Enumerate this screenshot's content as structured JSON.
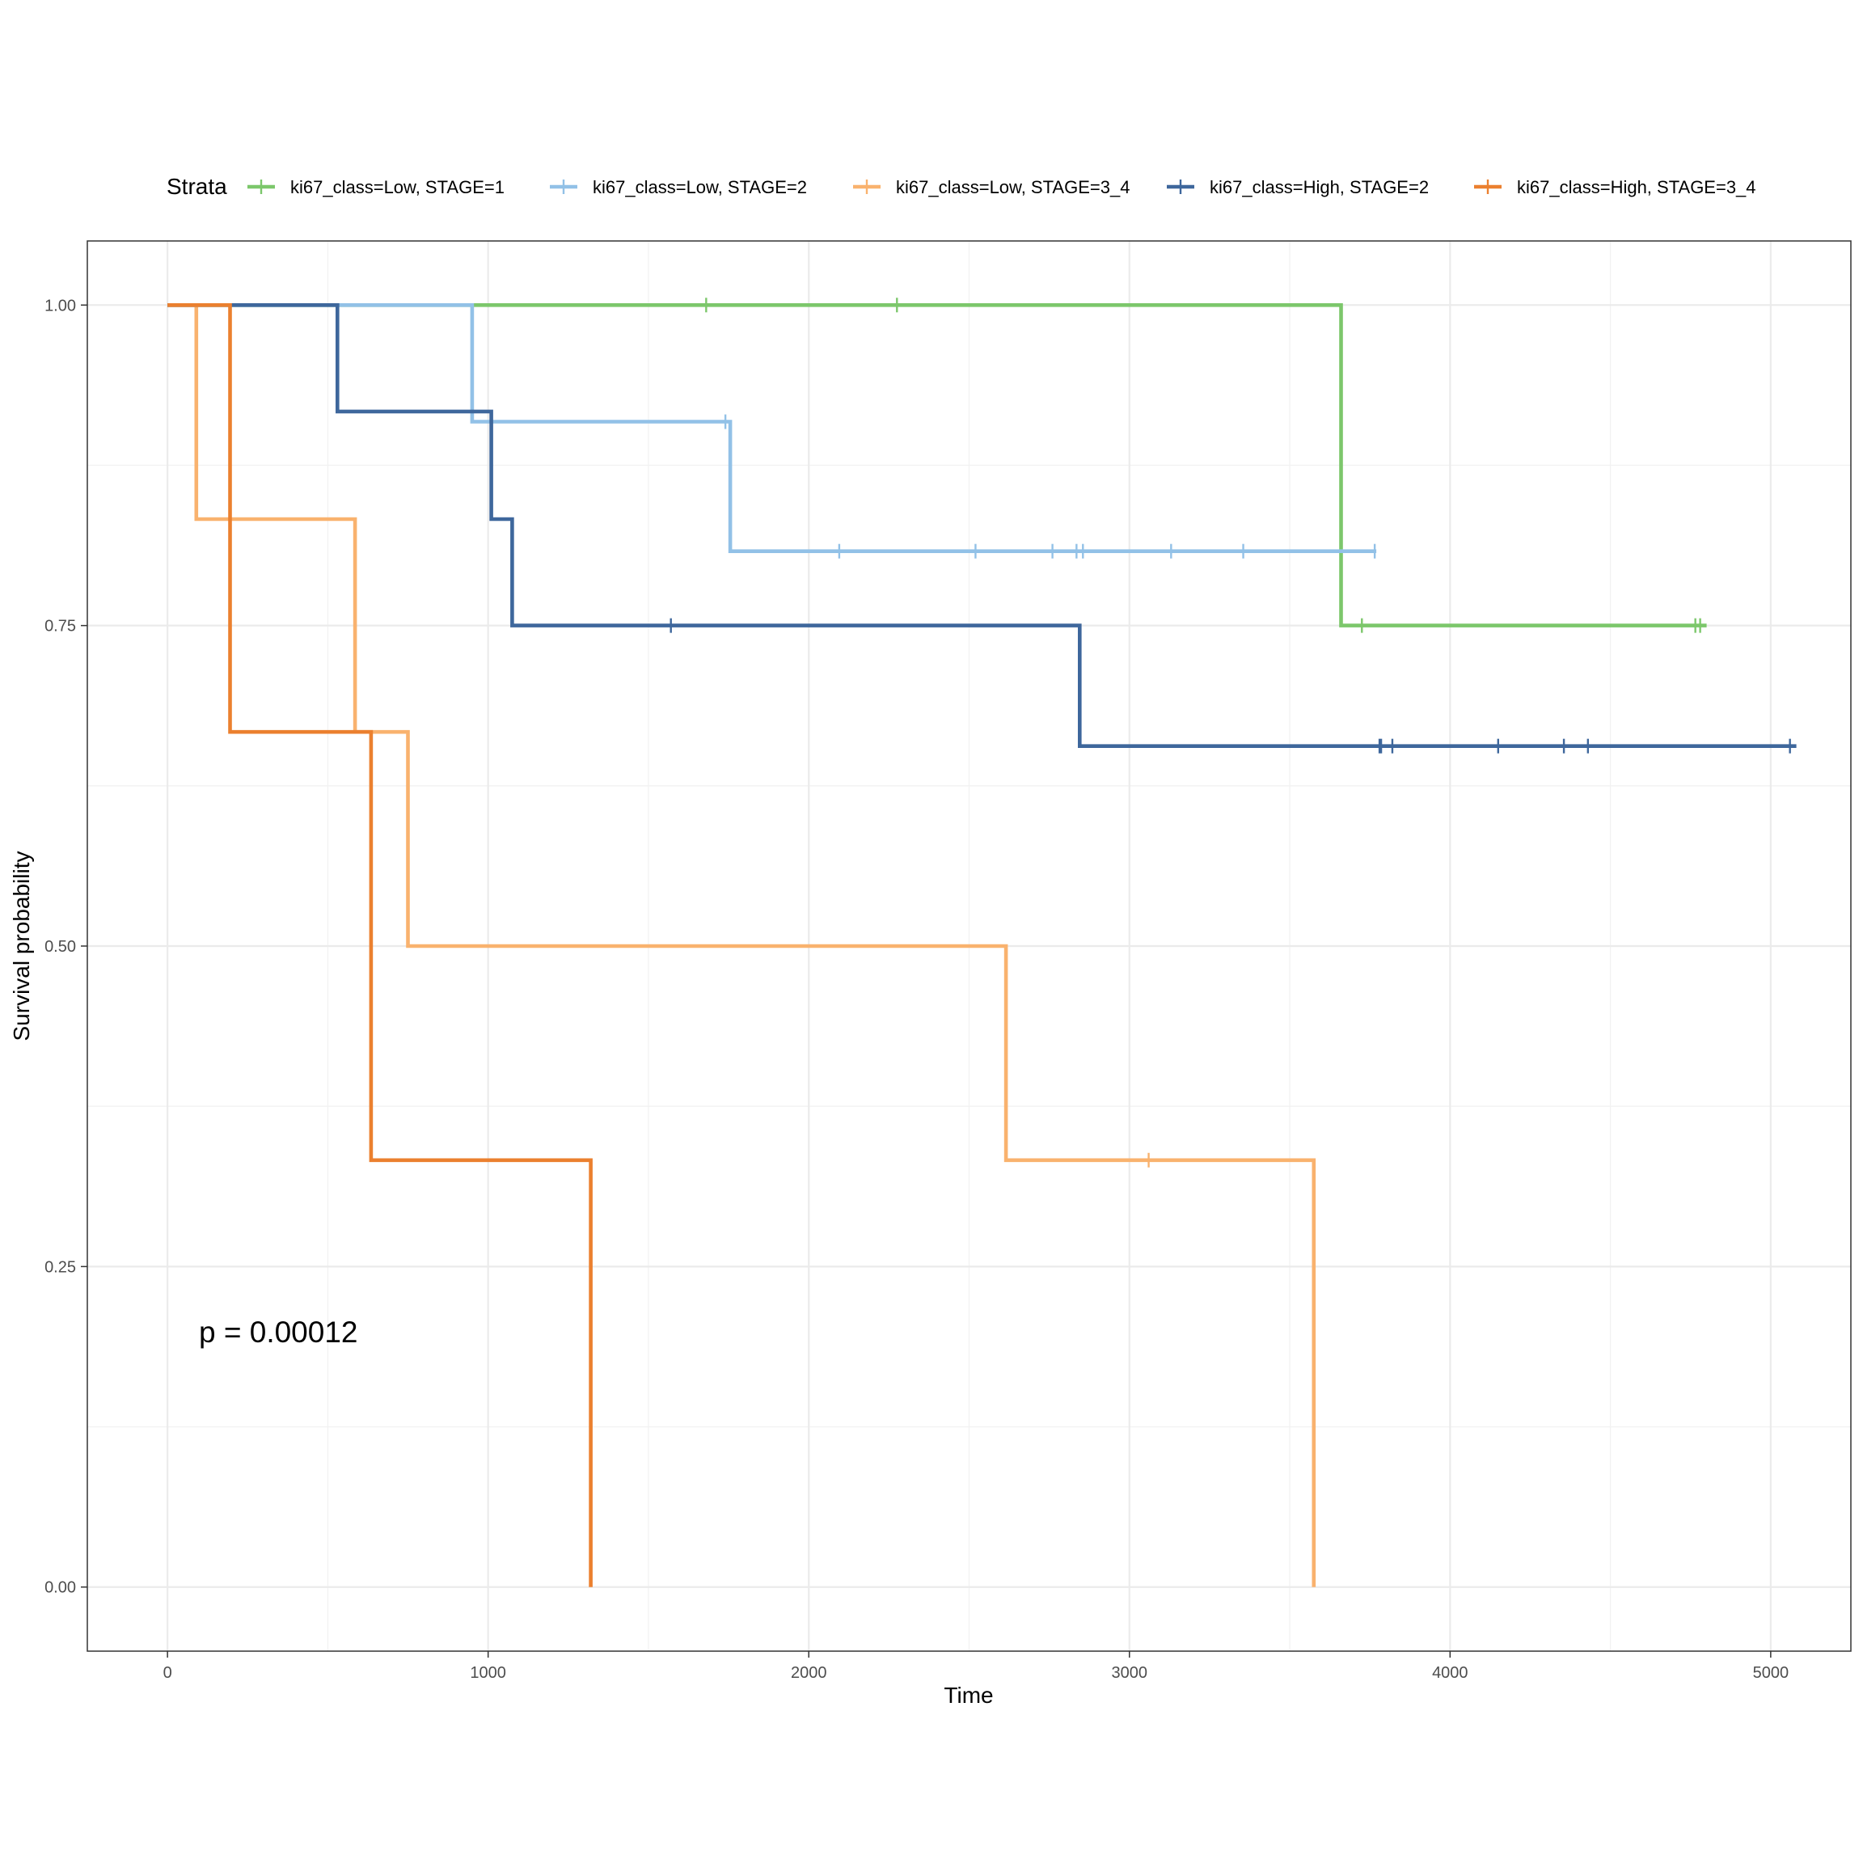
{
  "chart_data": {
    "type": "line",
    "subtype": "kaplan-meier-step",
    "title": "",
    "xlabel": "Time",
    "ylabel": "Survival probability",
    "xlim": [
      -250,
      5250
    ],
    "ylim": [
      -0.05,
      1.05
    ],
    "xticks": [
      0,
      1000,
      2000,
      3000,
      4000,
      5000
    ],
    "xtick_labels": [
      "0",
      "1000",
      "2000",
      "3000",
      "4000",
      "5000"
    ],
    "yticks": [
      0.0,
      0.25,
      0.5,
      0.75,
      1.0
    ],
    "ytick_labels": [
      "0.00",
      "0.25",
      "0.50",
      "0.75",
      "1.00"
    ],
    "grid": true,
    "legend": {
      "title": "Strata",
      "placement": "top"
    },
    "annotation": "p = 0.00012",
    "series": [
      {
        "name": "ki67_class=Low, STAGE=1",
        "color": "#7CC76B",
        "steps": [
          [
            0,
            1.0
          ],
          [
            3660,
            1.0
          ],
          [
            3660,
            0.75
          ],
          [
            4800,
            0.75
          ]
        ],
        "censor": [
          [
            1680,
            1.0
          ],
          [
            2275,
            1.0
          ],
          [
            3725,
            0.75
          ],
          [
            4765,
            0.75
          ],
          [
            4780,
            0.75
          ]
        ]
      },
      {
        "name": "ki67_class=Low, STAGE=2",
        "color": "#92C1E7",
        "steps": [
          [
            0,
            1.0
          ],
          [
            950,
            1.0
          ],
          [
            950,
            0.909
          ],
          [
            1755,
            0.909
          ],
          [
            1755,
            0.808
          ],
          [
            3770,
            0.808
          ]
        ],
        "censor": [
          [
            1740,
            0.909
          ],
          [
            2095,
            0.808
          ],
          [
            2520,
            0.808
          ],
          [
            2760,
            0.808
          ],
          [
            2835,
            0.808
          ],
          [
            2855,
            0.808
          ],
          [
            3130,
            0.808
          ],
          [
            3355,
            0.808
          ],
          [
            3765,
            0.808
          ]
        ]
      },
      {
        "name": "ki67_class=Low, STAGE=3_4",
        "color": "#F9B26E",
        "steps": [
          [
            0,
            1.0
          ],
          [
            90,
            1.0
          ],
          [
            90,
            0.833
          ],
          [
            585,
            0.833
          ],
          [
            585,
            0.667
          ],
          [
            750,
            0.667
          ],
          [
            750,
            0.5
          ],
          [
            2615,
            0.5
          ],
          [
            2615,
            0.333
          ],
          [
            3575,
            0.333
          ],
          [
            3575,
            0.0
          ]
        ],
        "censor": [
          [
            3060,
            0.333
          ]
        ]
      },
      {
        "name": "ki67_class=High, STAGE=2",
        "color": "#3E679C",
        "steps": [
          [
            0,
            1.0
          ],
          [
            530,
            1.0
          ],
          [
            530,
            0.917
          ],
          [
            1010,
            0.917
          ],
          [
            1010,
            0.833
          ],
          [
            1075,
            0.833
          ],
          [
            1075,
            0.75
          ],
          [
            2845,
            0.75
          ],
          [
            2845,
            0.656
          ],
          [
            5080,
            0.656
          ]
        ],
        "censor": [
          [
            1570,
            0.75
          ],
          [
            3780,
            0.656
          ],
          [
            3785,
            0.656
          ],
          [
            3820,
            0.656
          ],
          [
            4150,
            0.656
          ],
          [
            4355,
            0.656
          ],
          [
            4430,
            0.656
          ],
          [
            5060,
            0.656
          ]
        ]
      },
      {
        "name": "ki67_class=High, STAGE=3_4",
        "color": "#EB802F",
        "steps": [
          [
            0,
            1.0
          ],
          [
            195,
            1.0
          ],
          [
            195,
            0.667
          ],
          [
            635,
            0.667
          ],
          [
            635,
            0.333
          ],
          [
            1320,
            0.333
          ],
          [
            1320,
            0.0
          ]
        ],
        "censor": []
      }
    ]
  }
}
